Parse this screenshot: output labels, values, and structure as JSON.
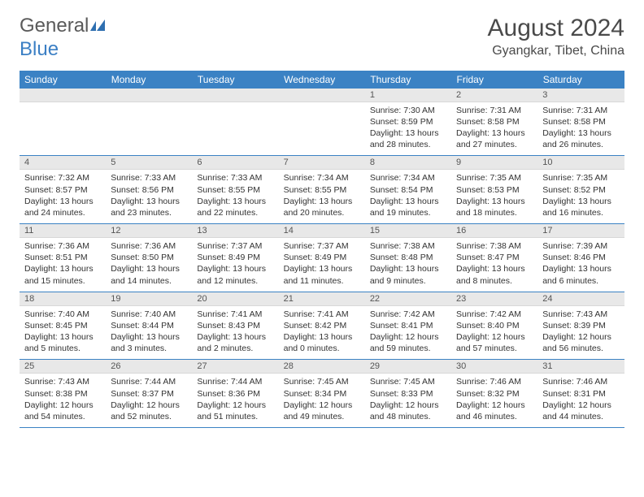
{
  "logo": {
    "text1": "General",
    "text2": "Blue"
  },
  "title": "August 2024",
  "location": "Gyangkar, Tibet, China",
  "colors": {
    "header_bg": "#3b82c4",
    "header_text": "#ffffff",
    "daynum_bg": "#e8e8e8",
    "daynum_text": "#555555",
    "cell_text": "#333333",
    "rule": "#3b82c4",
    "logo_gray": "#5a5a5a",
    "logo_blue": "#3b7fc4"
  },
  "day_headers": [
    "Sunday",
    "Monday",
    "Tuesday",
    "Wednesday",
    "Thursday",
    "Friday",
    "Saturday"
  ],
  "weeks": [
    [
      null,
      null,
      null,
      null,
      {
        "n": "1",
        "sunrise": "7:30 AM",
        "sunset": "8:59 PM",
        "daylight": "13 hours and 28 minutes."
      },
      {
        "n": "2",
        "sunrise": "7:31 AM",
        "sunset": "8:58 PM",
        "daylight": "13 hours and 27 minutes."
      },
      {
        "n": "3",
        "sunrise": "7:31 AM",
        "sunset": "8:58 PM",
        "daylight": "13 hours and 26 minutes."
      }
    ],
    [
      {
        "n": "4",
        "sunrise": "7:32 AM",
        "sunset": "8:57 PM",
        "daylight": "13 hours and 24 minutes."
      },
      {
        "n": "5",
        "sunrise": "7:33 AM",
        "sunset": "8:56 PM",
        "daylight": "13 hours and 23 minutes."
      },
      {
        "n": "6",
        "sunrise": "7:33 AM",
        "sunset": "8:55 PM",
        "daylight": "13 hours and 22 minutes."
      },
      {
        "n": "7",
        "sunrise": "7:34 AM",
        "sunset": "8:55 PM",
        "daylight": "13 hours and 20 minutes."
      },
      {
        "n": "8",
        "sunrise": "7:34 AM",
        "sunset": "8:54 PM",
        "daylight": "13 hours and 19 minutes."
      },
      {
        "n": "9",
        "sunrise": "7:35 AM",
        "sunset": "8:53 PM",
        "daylight": "13 hours and 18 minutes."
      },
      {
        "n": "10",
        "sunrise": "7:35 AM",
        "sunset": "8:52 PM",
        "daylight": "13 hours and 16 minutes."
      }
    ],
    [
      {
        "n": "11",
        "sunrise": "7:36 AM",
        "sunset": "8:51 PM",
        "daylight": "13 hours and 15 minutes."
      },
      {
        "n": "12",
        "sunrise": "7:36 AM",
        "sunset": "8:50 PM",
        "daylight": "13 hours and 14 minutes."
      },
      {
        "n": "13",
        "sunrise": "7:37 AM",
        "sunset": "8:49 PM",
        "daylight": "13 hours and 12 minutes."
      },
      {
        "n": "14",
        "sunrise": "7:37 AM",
        "sunset": "8:49 PM",
        "daylight": "13 hours and 11 minutes."
      },
      {
        "n": "15",
        "sunrise": "7:38 AM",
        "sunset": "8:48 PM",
        "daylight": "13 hours and 9 minutes."
      },
      {
        "n": "16",
        "sunrise": "7:38 AM",
        "sunset": "8:47 PM",
        "daylight": "13 hours and 8 minutes."
      },
      {
        "n": "17",
        "sunrise": "7:39 AM",
        "sunset": "8:46 PM",
        "daylight": "13 hours and 6 minutes."
      }
    ],
    [
      {
        "n": "18",
        "sunrise": "7:40 AM",
        "sunset": "8:45 PM",
        "daylight": "13 hours and 5 minutes."
      },
      {
        "n": "19",
        "sunrise": "7:40 AM",
        "sunset": "8:44 PM",
        "daylight": "13 hours and 3 minutes."
      },
      {
        "n": "20",
        "sunrise": "7:41 AM",
        "sunset": "8:43 PM",
        "daylight": "13 hours and 2 minutes."
      },
      {
        "n": "21",
        "sunrise": "7:41 AM",
        "sunset": "8:42 PM",
        "daylight": "13 hours and 0 minutes."
      },
      {
        "n": "22",
        "sunrise": "7:42 AM",
        "sunset": "8:41 PM",
        "daylight": "12 hours and 59 minutes."
      },
      {
        "n": "23",
        "sunrise": "7:42 AM",
        "sunset": "8:40 PM",
        "daylight": "12 hours and 57 minutes."
      },
      {
        "n": "24",
        "sunrise": "7:43 AM",
        "sunset": "8:39 PM",
        "daylight": "12 hours and 56 minutes."
      }
    ],
    [
      {
        "n": "25",
        "sunrise": "7:43 AM",
        "sunset": "8:38 PM",
        "daylight": "12 hours and 54 minutes."
      },
      {
        "n": "26",
        "sunrise": "7:44 AM",
        "sunset": "8:37 PM",
        "daylight": "12 hours and 52 minutes."
      },
      {
        "n": "27",
        "sunrise": "7:44 AM",
        "sunset": "8:36 PM",
        "daylight": "12 hours and 51 minutes."
      },
      {
        "n": "28",
        "sunrise": "7:45 AM",
        "sunset": "8:34 PM",
        "daylight": "12 hours and 49 minutes."
      },
      {
        "n": "29",
        "sunrise": "7:45 AM",
        "sunset": "8:33 PM",
        "daylight": "12 hours and 48 minutes."
      },
      {
        "n": "30",
        "sunrise": "7:46 AM",
        "sunset": "8:32 PM",
        "daylight": "12 hours and 46 minutes."
      },
      {
        "n": "31",
        "sunrise": "7:46 AM",
        "sunset": "8:31 PM",
        "daylight": "12 hours and 44 minutes."
      }
    ]
  ],
  "labels": {
    "sunrise": "Sunrise: ",
    "sunset": "Sunset: ",
    "daylight": "Daylight: "
  }
}
